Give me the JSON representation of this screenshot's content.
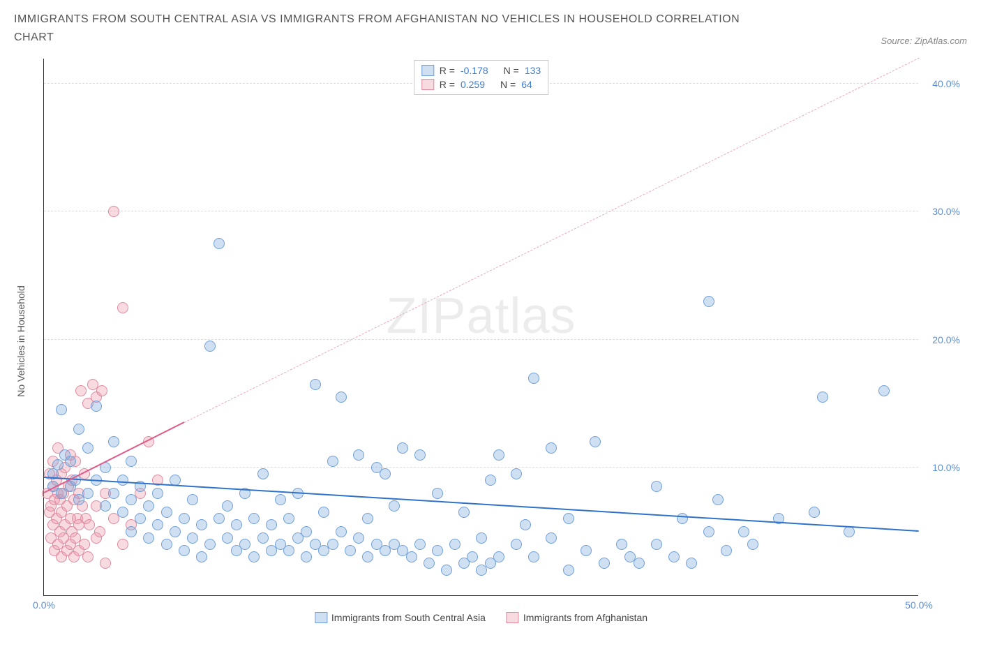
{
  "title": "IMMIGRANTS FROM SOUTH CENTRAL ASIA VS IMMIGRANTS FROM AFGHANISTAN NO VEHICLES IN HOUSEHOLD CORRELATION CHART",
  "source_label": "Source: ZipAtlas.com",
  "ylabel": "No Vehicles in Household",
  "watermark": {
    "zip": "ZIP",
    "atlas": "atlas"
  },
  "axes": {
    "xlim": [
      0,
      50
    ],
    "ylim": [
      0,
      42
    ],
    "xticks": [
      {
        "v": 0,
        "l": "0.0%"
      },
      {
        "v": 50,
        "l": "50.0%"
      }
    ],
    "yticks": [
      {
        "v": 10,
        "l": "10.0%"
      },
      {
        "v": 20,
        "l": "20.0%"
      },
      {
        "v": 30,
        "l": "30.0%"
      },
      {
        "v": 40,
        "l": "40.0%"
      }
    ],
    "grid_color": "#dddddd"
  },
  "colors": {
    "series_a_fill": "rgba(120,165,220,0.35)",
    "series_a_stroke": "#6f9fd8",
    "series_b_fill": "rgba(235,150,170,0.35)",
    "series_b_stroke": "#e08aa0",
    "trend_a": "#2f72c9",
    "trend_b": "#e68aa5",
    "tick_text": "#5b8fd6"
  },
  "legend_top": [
    {
      "swatch_fill": "rgba(120,165,220,0.35)",
      "swatch_stroke": "#6f9fd8",
      "r_label": "R =",
      "r_val": "-0.178",
      "n_label": "N =",
      "n_val": "133"
    },
    {
      "swatch_fill": "rgba(235,150,170,0.35)",
      "swatch_stroke": "#e08aa0",
      "r_label": "R =",
      "r_val": "0.259",
      "n_label": "N =",
      "n_val": "64"
    }
  ],
  "legend_bottom": [
    {
      "swatch_fill": "rgba(120,165,220,0.35)",
      "swatch_stroke": "#6f9fd8",
      "label": "Immigrants from South Central Asia"
    },
    {
      "swatch_fill": "rgba(235,150,170,0.35)",
      "swatch_stroke": "#e08aa0",
      "label": "Immigrants from Afghanistan"
    }
  ],
  "trend_lines": {
    "a": {
      "x1": 0,
      "y1": 9.2,
      "x2": 50,
      "y2": 5.0,
      "color": "#2f72c9",
      "width": 2.5,
      "dash": false,
      "extend": {
        "x1": 0,
        "y1": 9.2,
        "x2": 50,
        "y2": 5.0
      }
    },
    "b": {
      "solid": {
        "x1": 0,
        "y1": 8.0,
        "x2": 8,
        "y2": 13.5,
        "color": "#e05a8a",
        "width": 2.5
      },
      "dashed": {
        "x1": 8,
        "y1": 13.5,
        "x2": 50,
        "y2": 42.0,
        "color": "#e9a8bd",
        "width": 1.5
      }
    }
  },
  "series_a": {
    "marker_radius": 8,
    "points": [
      [
        0.5,
        8.5
      ],
      [
        0.5,
        9.5
      ],
      [
        0.8,
        10.2
      ],
      [
        1.0,
        8.0
      ],
      [
        1.0,
        14.5
      ],
      [
        1.2,
        11.0
      ],
      [
        1.5,
        8.5
      ],
      [
        1.5,
        10.5
      ],
      [
        1.8,
        9.0
      ],
      [
        2.0,
        7.5
      ],
      [
        2.0,
        13.0
      ],
      [
        2.5,
        8.0
      ],
      [
        2.5,
        11.5
      ],
      [
        3.0,
        9.0
      ],
      [
        3.0,
        14.8
      ],
      [
        3.5,
        7.0
      ],
      [
        3.5,
        10.0
      ],
      [
        4.0,
        8.0
      ],
      [
        4.0,
        12.0
      ],
      [
        4.5,
        6.5
      ],
      [
        4.5,
        9.0
      ],
      [
        5.0,
        5.0
      ],
      [
        5.0,
        7.5
      ],
      [
        5.0,
        10.5
      ],
      [
        5.5,
        6.0
      ],
      [
        5.5,
        8.5
      ],
      [
        6.0,
        4.5
      ],
      [
        6.0,
        7.0
      ],
      [
        6.5,
        5.5
      ],
      [
        6.5,
        8.0
      ],
      [
        7.0,
        4.0
      ],
      [
        7.0,
        6.5
      ],
      [
        7.5,
        5.0
      ],
      [
        7.5,
        9.0
      ],
      [
        8.0,
        3.5
      ],
      [
        8.0,
        6.0
      ],
      [
        8.5,
        4.5
      ],
      [
        8.5,
        7.5
      ],
      [
        9.0,
        3.0
      ],
      [
        9.0,
        5.5
      ],
      [
        9.5,
        4.0
      ],
      [
        9.5,
        19.5
      ],
      [
        10.0,
        6.0
      ],
      [
        10.0,
        27.5
      ],
      [
        10.5,
        4.5
      ],
      [
        10.5,
        7.0
      ],
      [
        11.0,
        3.5
      ],
      [
        11.0,
        5.5
      ],
      [
        11.5,
        4.0
      ],
      [
        11.5,
        8.0
      ],
      [
        12.0,
        3.0
      ],
      [
        12.0,
        6.0
      ],
      [
        12.5,
        4.5
      ],
      [
        12.5,
        9.5
      ],
      [
        13.0,
        3.5
      ],
      [
        13.0,
        5.5
      ],
      [
        13.5,
        4.0
      ],
      [
        13.5,
        7.5
      ],
      [
        14.0,
        3.5
      ],
      [
        14.0,
        6.0
      ],
      [
        14.5,
        4.5
      ],
      [
        14.5,
        8.0
      ],
      [
        15.0,
        3.0
      ],
      [
        15.0,
        5.0
      ],
      [
        15.5,
        4.0
      ],
      [
        15.5,
        16.5
      ],
      [
        16.0,
        3.5
      ],
      [
        16.0,
        6.5
      ],
      [
        16.5,
        4.0
      ],
      [
        16.5,
        10.5
      ],
      [
        17.0,
        5.0
      ],
      [
        17.0,
        15.5
      ],
      [
        17.5,
        3.5
      ],
      [
        18.0,
        4.5
      ],
      [
        18.0,
        11.0
      ],
      [
        18.5,
        3.0
      ],
      [
        18.5,
        6.0
      ],
      [
        19.0,
        4.0
      ],
      [
        19.0,
        10.0
      ],
      [
        19.5,
        3.5
      ],
      [
        19.5,
        9.5
      ],
      [
        20.0,
        4.0
      ],
      [
        20.0,
        7.0
      ],
      [
        20.5,
        3.5
      ],
      [
        20.5,
        11.5
      ],
      [
        21.0,
        3.0
      ],
      [
        21.5,
        4.0
      ],
      [
        21.5,
        11.0
      ],
      [
        22.0,
        2.5
      ],
      [
        22.5,
        3.5
      ],
      [
        22.5,
        8.0
      ],
      [
        23.0,
        2.0
      ],
      [
        23.5,
        4.0
      ],
      [
        24.0,
        2.5
      ],
      [
        24.0,
        6.5
      ],
      [
        24.5,
        3.0
      ],
      [
        25.0,
        2.0
      ],
      [
        25.0,
        4.5
      ],
      [
        25.5,
        2.5
      ],
      [
        25.5,
        9.0
      ],
      [
        26.0,
        3.0
      ],
      [
        26.0,
        11.0
      ],
      [
        27.0,
        4.0
      ],
      [
        27.0,
        9.5
      ],
      [
        27.5,
        5.5
      ],
      [
        28.0,
        3.0
      ],
      [
        28.0,
        17.0
      ],
      [
        29.0,
        4.5
      ],
      [
        29.0,
        11.5
      ],
      [
        30.0,
        2.0
      ],
      [
        30.0,
        6.0
      ],
      [
        31.0,
        3.5
      ],
      [
        31.5,
        12.0
      ],
      [
        32.0,
        2.5
      ],
      [
        33.0,
        4.0
      ],
      [
        33.5,
        3.0
      ],
      [
        34.0,
        2.5
      ],
      [
        35.0,
        4.0
      ],
      [
        35.0,
        8.5
      ],
      [
        36.0,
        3.0
      ],
      [
        36.5,
        6.0
      ],
      [
        37.0,
        2.5
      ],
      [
        38.0,
        5.0
      ],
      [
        38.0,
        23.0
      ],
      [
        38.5,
        7.5
      ],
      [
        39.0,
        3.5
      ],
      [
        40.0,
        5.0
      ],
      [
        40.5,
        4.0
      ],
      [
        42.0,
        6.0
      ],
      [
        44.0,
        6.5
      ],
      [
        44.5,
        15.5
      ],
      [
        46.0,
        5.0
      ],
      [
        48.0,
        16.0
      ]
    ]
  },
  "series_b": {
    "marker_radius": 8,
    "points": [
      [
        0.2,
        8.0
      ],
      [
        0.3,
        6.5
      ],
      [
        0.3,
        9.5
      ],
      [
        0.4,
        7.0
      ],
      [
        0.4,
        4.5
      ],
      [
        0.5,
        8.5
      ],
      [
        0.5,
        5.5
      ],
      [
        0.5,
        10.5
      ],
      [
        0.6,
        7.5
      ],
      [
        0.6,
        3.5
      ],
      [
        0.7,
        9.0
      ],
      [
        0.7,
        6.0
      ],
      [
        0.8,
        4.0
      ],
      [
        0.8,
        8.0
      ],
      [
        0.8,
        11.5
      ],
      [
        0.9,
        5.0
      ],
      [
        0.9,
        7.5
      ],
      [
        1.0,
        3.0
      ],
      [
        1.0,
        9.5
      ],
      [
        1.0,
        6.5
      ],
      [
        1.1,
        4.5
      ],
      [
        1.1,
        8.0
      ],
      [
        1.2,
        5.5
      ],
      [
        1.2,
        10.0
      ],
      [
        1.3,
        7.0
      ],
      [
        1.3,
        3.5
      ],
      [
        1.4,
        8.5
      ],
      [
        1.5,
        4.0
      ],
      [
        1.5,
        6.0
      ],
      [
        1.5,
        11.0
      ],
      [
        1.6,
        5.0
      ],
      [
        1.6,
        9.0
      ],
      [
        1.7,
        3.0
      ],
      [
        1.7,
        7.5
      ],
      [
        1.8,
        4.5
      ],
      [
        1.8,
        10.5
      ],
      [
        1.9,
        6.0
      ],
      [
        2.0,
        3.5
      ],
      [
        2.0,
        8.0
      ],
      [
        2.0,
        5.5
      ],
      [
        2.1,
        16.0
      ],
      [
        2.2,
        7.0
      ],
      [
        2.3,
        4.0
      ],
      [
        2.3,
        9.5
      ],
      [
        2.4,
        6.0
      ],
      [
        2.5,
        3.0
      ],
      [
        2.5,
        15.0
      ],
      [
        2.6,
        5.5
      ],
      [
        2.8,
        16.5
      ],
      [
        3.0,
        4.5
      ],
      [
        3.0,
        15.5
      ],
      [
        3.0,
        7.0
      ],
      [
        3.2,
        5.0
      ],
      [
        3.3,
        16.0
      ],
      [
        3.5,
        8.0
      ],
      [
        3.5,
        2.5
      ],
      [
        4.0,
        6.0
      ],
      [
        4.0,
        30.0
      ],
      [
        4.5,
        4.0
      ],
      [
        4.5,
        22.5
      ],
      [
        5.0,
        5.5
      ],
      [
        5.5,
        8.0
      ],
      [
        6.0,
        12.0
      ],
      [
        6.5,
        9.0
      ]
    ]
  }
}
